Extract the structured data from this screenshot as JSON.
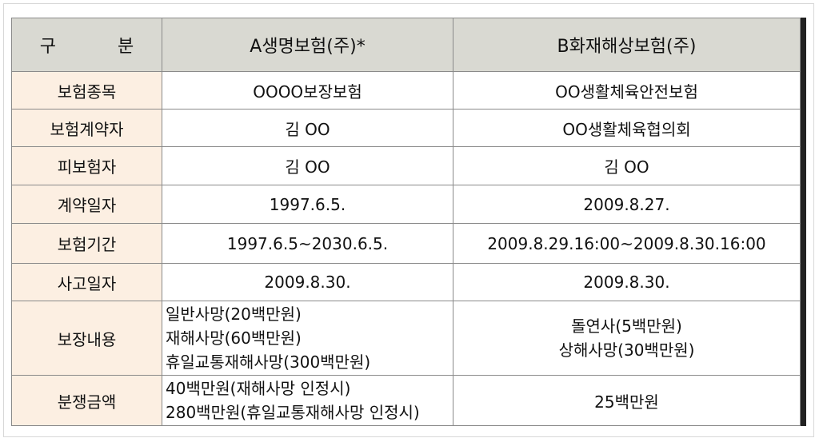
{
  "table": {
    "header": [
      "구 분",
      "A생명보험(주)*",
      "B화재해상보험(주)"
    ],
    "rows": [
      [
        "보험종목",
        "OOOO보장보험",
        "OO생활체육안전보험"
      ],
      [
        "보험계약자",
        "김 OO",
        "OO생활체육협의회"
      ],
      [
        "피보험자",
        "김 OO",
        "김 OO"
      ],
      [
        "계약일자",
        "1997.6.5.",
        "2009.8.27."
      ],
      [
        "보험기간",
        "1997.6.5~2030.6.5.",
        "2009.8.29.16:00~2009.8.30.16:00"
      ],
      [
        "사고일자",
        "2009.8.30.",
        "2009.8.30."
      ],
      [
        "보장내용",
        [
          "일반사망(20백만원)",
          "재해사망(60백만원)",
          "휴일교통재해사망(300백만원)"
        ],
        [
          "돌연사(5백만원)",
          "상해사망(30백만원)"
        ]
      ],
      [
        "분쟁금액",
        [
          "40백만원(재해사망 인정시)",
          "280백만원(휴일교통재해사망 인정시)"
        ],
        "25백만원"
      ]
    ]
  }
}
